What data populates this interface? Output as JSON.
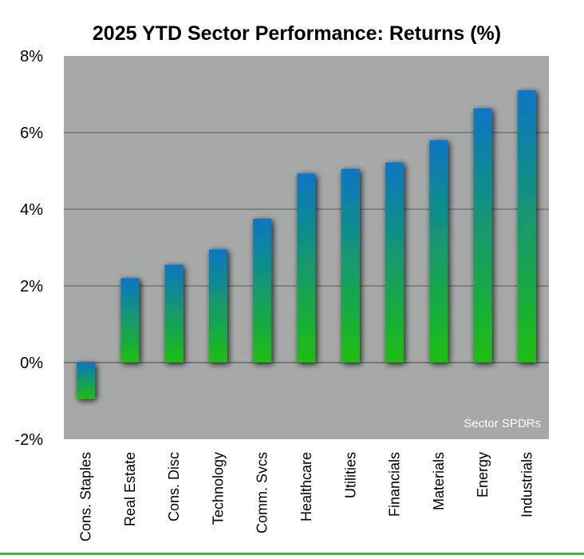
{
  "chart_data": {
    "type": "bar",
    "title": "2025 YTD Sector Performance: Returns (%)",
    "source_label": "Sector SPDRs",
    "categories": [
      "Cons. Staples",
      "Real Estate",
      "Cons. Disc",
      "Technology",
      "Comm. Svcs",
      "Healthcare",
      "Utilities",
      "Financials",
      "Materials",
      "Energy",
      "Industrials"
    ],
    "values": [
      -0.95,
      2.2,
      2.55,
      2.95,
      3.75,
      4.93,
      5.05,
      5.22,
      5.8,
      6.63,
      7.1
    ],
    "ylim": [
      -2,
      8
    ],
    "yticks": [
      -2,
      0,
      2,
      4,
      6,
      8
    ],
    "ytick_labels": [
      "-2%",
      "0%",
      "2%",
      "4%",
      "6%",
      "8%"
    ],
    "xlabel": "",
    "ylabel": "",
    "grid": true,
    "colors": {
      "bar_top": "#0b76c4",
      "bar_bottom": "#1cbf10",
      "plot_background": "#a6a9a8",
      "gridline": "#404040",
      "bottom_rule": "#46b24a"
    }
  }
}
